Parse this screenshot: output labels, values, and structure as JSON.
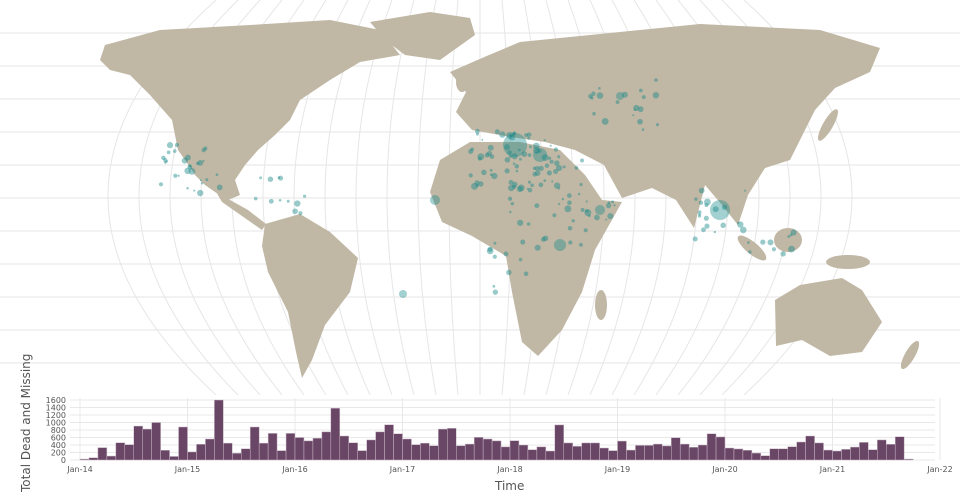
{
  "colors": {
    "land": "#c0b7a4",
    "marker": "#1a8a8a",
    "bar": "#6a4666",
    "bar_edge": "#c8b8c6",
    "grid": "#e8e8e8"
  },
  "chart_data": {
    "type": "bar",
    "xlabel": "Time",
    "ylabel": "Total Dead and Missing",
    "ylim": [
      0,
      1600
    ],
    "y_ticks": [
      0,
      200,
      400,
      600,
      800,
      1000,
      1200,
      1400,
      1600
    ],
    "x_ticks": [
      "Jan-14",
      "Jan-15",
      "Jan-16",
      "Jan-17",
      "Jan-18",
      "Jan-19",
      "Jan-20",
      "Jan-21",
      "Jan-22"
    ],
    "x_range": [
      "2014-01",
      "2022-01"
    ],
    "grid": true,
    "start_month": "2014-01",
    "values": [
      25,
      60,
      330,
      105,
      460,
      410,
      905,
      825,
      1000,
      260,
      95,
      880,
      215,
      420,
      560,
      1600,
      450,
      180,
      300,
      880,
      450,
      710,
      250,
      710,
      600,
      510,
      580,
      750,
      1380,
      640,
      460,
      250,
      535,
      750,
      940,
      700,
      560,
      410,
      450,
      380,
      825,
      845,
      380,
      425,
      605,
      560,
      510,
      350,
      515,
      400,
      275,
      350,
      240,
      935,
      455,
      365,
      455,
      455,
      320,
      250,
      505,
      265,
      390,
      390,
      425,
      375,
      595,
      425,
      340,
      400,
      700,
      615,
      320,
      295,
      260,
      185,
      115,
      300,
      300,
      355,
      480,
      640,
      455,
      265,
      240,
      285,
      345,
      470,
      275,
      535,
      420,
      620,
      25
    ]
  }
}
